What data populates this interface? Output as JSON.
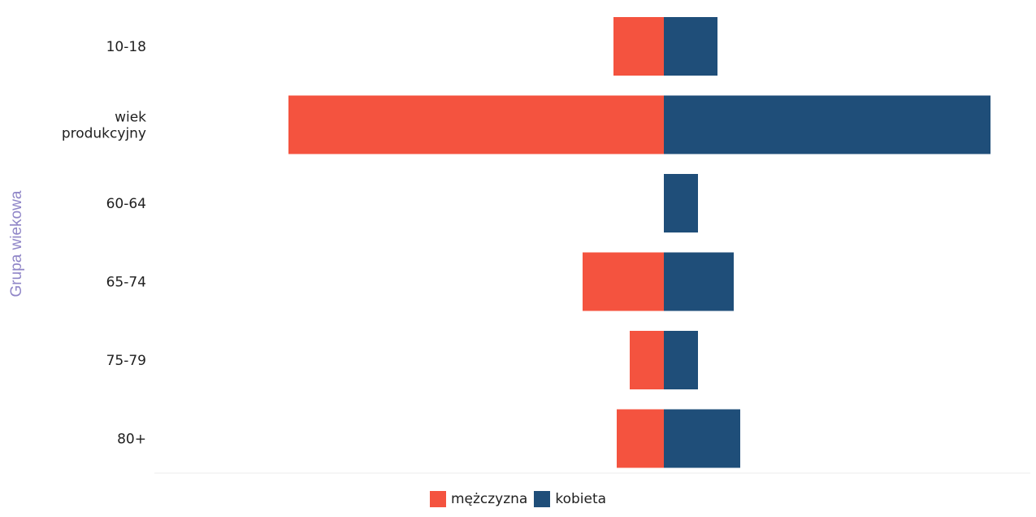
{
  "chart_data": {
    "type": "bar",
    "orientation": "horizontal",
    "stacked": "diverging",
    "ylabel": "Grupa wiekowa",
    "categories": [
      {
        "label": "10-18",
        "lines": [
          "10-18"
        ]
      },
      {
        "label": "wiek produkcyjny",
        "lines": [
          "wiek",
          "produkcyjny"
        ]
      },
      {
        "label": "60-64",
        "lines": [
          "60-64"
        ]
      },
      {
        "label": "65-74",
        "lines": [
          "65-74"
        ]
      },
      {
        "label": "75-79",
        "lines": [
          "75-79"
        ]
      },
      {
        "label": "80+",
        "lines": [
          "80+"
        ]
      }
    ],
    "series": [
      {
        "name": "mężczyzna",
        "color": "#f4533f",
        "values": [
          62,
          462,
          0,
          100,
          42,
          58
        ]
      },
      {
        "name": "kobieta",
        "color": "#1f4e79",
        "values": [
          66,
          402,
          42,
          86,
          42,
          94
        ]
      }
    ],
    "grid": false,
    "legend_position": "bottom-center"
  }
}
